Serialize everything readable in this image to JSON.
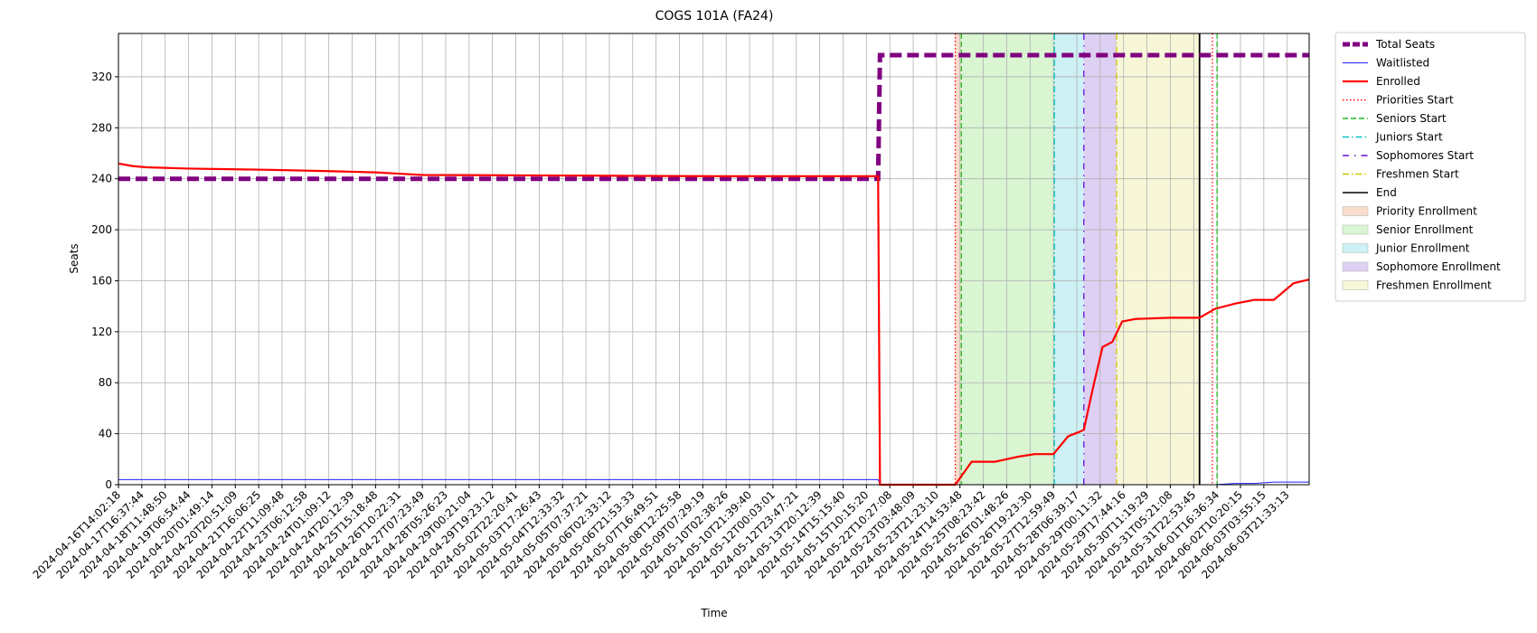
{
  "chart_data": {
    "type": "line",
    "title": "COGS 101A (FA24)",
    "x_label": "Time",
    "y_label": "Seats",
    "grid": true,
    "legend": "outside-upper-right",
    "xlim": [
      0,
      50.94
    ],
    "ylim": [
      0,
      354
    ],
    "yticks": [
      0,
      40,
      80,
      120,
      160,
      200,
      240,
      280,
      320
    ],
    "xticks": [
      {
        "value": 0,
        "label": "2024-04-16T14:02:18"
      },
      {
        "value": 1,
        "label": "2024-04-17T16:37:44"
      },
      {
        "value": 2,
        "label": "2024-04-18T11:48:50"
      },
      {
        "value": 3,
        "label": "2024-04-19T06:54:44"
      },
      {
        "value": 4,
        "label": "2024-04-20T01:49:14"
      },
      {
        "value": 5,
        "label": "2024-04-20T20:51:09"
      },
      {
        "value": 6,
        "label": "2024-04-21T16:06:25"
      },
      {
        "value": 7,
        "label": "2024-04-22T11:09:48"
      },
      {
        "value": 8,
        "label": "2024-04-23T06:12:58"
      },
      {
        "value": 9,
        "label": "2024-04-24T01:09:12"
      },
      {
        "value": 10,
        "label": "2024-04-24T20:12:39"
      },
      {
        "value": 11,
        "label": "2024-04-25T15:18:48"
      },
      {
        "value": 12,
        "label": "2024-04-26T10:22:31"
      },
      {
        "value": 13,
        "label": "2024-04-27T07:23:49"
      },
      {
        "value": 14,
        "label": "2024-04-28T05:26:23"
      },
      {
        "value": 15,
        "label": "2024-04-29T00:21:04"
      },
      {
        "value": 16,
        "label": "2024-04-29T19:23:12"
      },
      {
        "value": 17,
        "label": "2024-05-02T22:20:41"
      },
      {
        "value": 18,
        "label": "2024-05-03T17:26:43"
      },
      {
        "value": 19,
        "label": "2024-05-04T12:33:32"
      },
      {
        "value": 20,
        "label": "2024-05-05T07:37:21"
      },
      {
        "value": 21,
        "label": "2024-05-06T02:33:12"
      },
      {
        "value": 22,
        "label": "2024-05-06T21:53:33"
      },
      {
        "value": 23,
        "label": "2024-05-07T16:49:51"
      },
      {
        "value": 24,
        "label": "2024-05-08T12:25:58"
      },
      {
        "value": 25,
        "label": "2024-05-09T07:29:19"
      },
      {
        "value": 26,
        "label": "2024-05-10T02:38:26"
      },
      {
        "value": 27,
        "label": "2024-05-10T21:39:40"
      },
      {
        "value": 28,
        "label": "2024-05-12T00:03:01"
      },
      {
        "value": 29,
        "label": "2024-05-12T23:47:21"
      },
      {
        "value": 30,
        "label": "2024-05-13T20:12:39"
      },
      {
        "value": 31,
        "label": "2024-05-14T15:15:40"
      },
      {
        "value": 32,
        "label": "2024-05-15T10:15:20"
      },
      {
        "value": 33,
        "label": "2024-05-22T10:27:08"
      },
      {
        "value": 34,
        "label": "2024-05-23T03:48:09"
      },
      {
        "value": 35,
        "label": "2024-05-23T21:23:10"
      },
      {
        "value": 36,
        "label": "2024-05-24T14:53:48"
      },
      {
        "value": 37,
        "label": "2024-05-25T08:23:42"
      },
      {
        "value": 38,
        "label": "2024-05-26T01:48:26"
      },
      {
        "value": 39,
        "label": "2024-05-26T19:23:30"
      },
      {
        "value": 40,
        "label": "2024-05-27T12:59:49"
      },
      {
        "value": 41,
        "label": "2024-05-28T06:39:17"
      },
      {
        "value": 42,
        "label": "2024-05-29T00:11:32"
      },
      {
        "value": 43,
        "label": "2024-05-29T17:44:16"
      },
      {
        "value": 44,
        "label": "2024-05-30T11:19:29"
      },
      {
        "value": 45,
        "label": "2024-05-31T05:21:08"
      },
      {
        "value": 46,
        "label": "2024-05-31T22:53:45"
      },
      {
        "value": 47,
        "label": "2024-06-01T16:36:34"
      },
      {
        "value": 48,
        "label": "2024-06-02T10:20:15"
      },
      {
        "value": 49,
        "label": "2024-06-03T03:55:15"
      },
      {
        "value": 50,
        "label": "2024-06-03T21:33:13"
      }
    ],
    "x": [
      0,
      0.6,
      1.2,
      3,
      6.5,
      9,
      11,
      12,
      13,
      25.8,
      32.5,
      32.58,
      35.8,
      36.5,
      37.5,
      38.5,
      39.2,
      40,
      40.63,
      41.05,
      41.3,
      41.68,
      42.1,
      42.52,
      42.94,
      43.5,
      45,
      46.25,
      46.92,
      47.76,
      48.6,
      49.43,
      50.27,
      50.94
    ],
    "series": [
      {
        "name": "Total Seats",
        "color": "#800080",
        "linestyle": "dashed",
        "linewidth": 5,
        "values": [
          240,
          240,
          240,
          240,
          240,
          240,
          240,
          240,
          240,
          240,
          240,
          337,
          337,
          337,
          337,
          337,
          337,
          337,
          337,
          337,
          337,
          337,
          337,
          337,
          337,
          337,
          337,
          337,
          337,
          337,
          337,
          337,
          337,
          337
        ]
      },
      {
        "name": "Waitlisted",
        "color": "#1f1fff",
        "linestyle": "solid",
        "linewidth": 1,
        "values": [
          4,
          4,
          4,
          4,
          4,
          4,
          4,
          4,
          4,
          4,
          4,
          0,
          0,
          0,
          0,
          0,
          0,
          0,
          0,
          0,
          0,
          0,
          0,
          0,
          0,
          0,
          0,
          0,
          0,
          1,
          1,
          2,
          2,
          2
        ]
      },
      {
        "name": "Enrolled",
        "color": "#ff0000",
        "linestyle": "solid",
        "linewidth": 2.2,
        "values": [
          252,
          250,
          249,
          248,
          247,
          246,
          245,
          244,
          243,
          242,
          242,
          0,
          0,
          18,
          18,
          22,
          24,
          24,
          38,
          41,
          43,
          75,
          108,
          112,
          128,
          130,
          131,
          131,
          138,
          142,
          145,
          145,
          158,
          161
        ]
      }
    ],
    "vlines": [
      {
        "name": "Priorities Start",
        "color": "#ff0000",
        "linestyle": "dotted",
        "x": [
          35.8,
          46.8
        ]
      },
      {
        "name": "Seniors Start",
        "color": "#22bb22",
        "linestyle": "dashed",
        "x": [
          36.06,
          47.0
        ]
      },
      {
        "name": "Juniors Start",
        "color": "#00bfbf",
        "linestyle": "dashdot",
        "x": [
          40.04
        ]
      },
      {
        "name": "Sophomores Start",
        "color": "#6a0dd8",
        "linestyle": "loosedashdot",
        "x": [
          41.3
        ]
      },
      {
        "name": "Freshmen Start",
        "color": "#d4c400",
        "linestyle": "dashdot",
        "x": [
          42.7
        ]
      },
      {
        "name": "End",
        "color": "#000000",
        "linestyle": "solid",
        "x": [
          46.25
        ]
      }
    ],
    "spans": [
      {
        "name": "Priority Enrollment",
        "color": "#f9dccc",
        "x": [
          35.8,
          36.06
        ]
      },
      {
        "name": "Senior Enrollment",
        "color": "#d9f5d2",
        "x": [
          36.06,
          40.04
        ]
      },
      {
        "name": "Junior Enrollment",
        "color": "#cdf1f4",
        "x": [
          40.04,
          41.3
        ]
      },
      {
        "name": "Sophomore Enrollment",
        "color": "#ddd0f3",
        "x": [
          41.3,
          42.7
        ]
      },
      {
        "name": "Freshmen Enrollment",
        "color": "#f7f7d8",
        "x": [
          42.7,
          46.25
        ]
      }
    ]
  }
}
